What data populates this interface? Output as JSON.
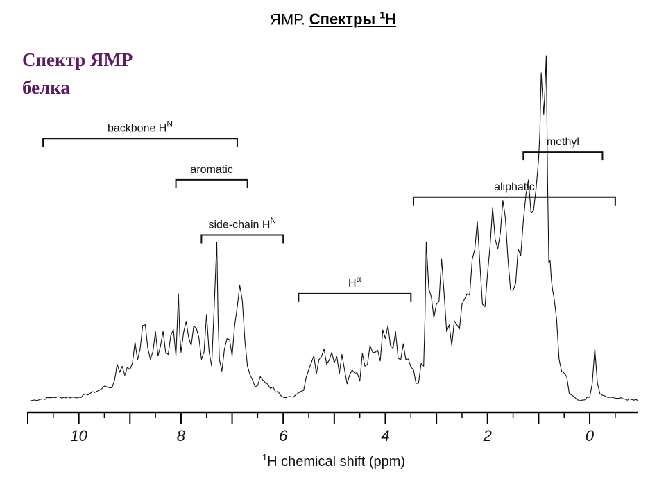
{
  "header": {
    "title_prefix": "ЯМР.",
    "title_main": "Спектры",
    "title_sup": "1",
    "title_suffix": "H"
  },
  "sidebar": {
    "line1": "Спектр ЯМР",
    "line2": "белка"
  },
  "chart_data": {
    "type": "line",
    "title": "",
    "xlabel_sup": "1",
    "xlabel": "H chemical shift (ppm)",
    "ylabel": "",
    "xlim": [
      11,
      -0.95
    ],
    "xticks": [
      10,
      8,
      6,
      4,
      2,
      0
    ],
    "x_reversed": true,
    "grid": false,
    "regions": [
      {
        "label": "backbone H",
        "label_sup": "N",
        "from": 10.7,
        "to": 6.9,
        "level": 0.76
      },
      {
        "label": "aromatic",
        "label_sup": "",
        "from": 8.1,
        "to": 6.7,
        "level": 0.64
      },
      {
        "label": "side-chain H",
        "label_sup": "N",
        "from": 7.6,
        "to": 6.0,
        "level": 0.48
      },
      {
        "label": "H",
        "label_sup": "α",
        "from": 5.7,
        "to": 3.5,
        "level": 0.31
      },
      {
        "label": "aliphatic",
        "label_sup": "",
        "from": 3.45,
        "to": -0.5,
        "level": 0.59
      },
      {
        "label": "methyl",
        "label_sup": "",
        "from": 1.3,
        "to": -0.25,
        "level": 0.72
      }
    ],
    "spectrum": [
      [
        10.95,
        0.0
      ],
      [
        10.5,
        0.01
      ],
      [
        10.0,
        0.01
      ],
      [
        9.6,
        0.03
      ],
      [
        9.45,
        0.04
      ],
      [
        9.3,
        0.06
      ],
      [
        9.15,
        0.1
      ],
      [
        9.0,
        0.09
      ],
      [
        8.9,
        0.17
      ],
      [
        8.8,
        0.15
      ],
      [
        8.7,
        0.22
      ],
      [
        8.6,
        0.12
      ],
      [
        8.5,
        0.2
      ],
      [
        8.4,
        0.16
      ],
      [
        8.3,
        0.14
      ],
      [
        8.2,
        0.19
      ],
      [
        8.1,
        0.13
      ],
      [
        8.05,
        0.31
      ],
      [
        8.0,
        0.14
      ],
      [
        7.9,
        0.23
      ],
      [
        7.8,
        0.16
      ],
      [
        7.7,
        0.21
      ],
      [
        7.6,
        0.12
      ],
      [
        7.5,
        0.25
      ],
      [
        7.4,
        0.1
      ],
      [
        7.3,
        0.46
      ],
      [
        7.25,
        0.12
      ],
      [
        7.1,
        0.18
      ],
      [
        7.0,
        0.13
      ],
      [
        6.9,
        0.27
      ],
      [
        6.8,
        0.29
      ],
      [
        6.7,
        0.1
      ],
      [
        6.55,
        0.04
      ],
      [
        6.4,
        0.06
      ],
      [
        6.2,
        0.04
      ],
      [
        6.0,
        0.01
      ],
      [
        5.8,
        0.01
      ],
      [
        5.6,
        0.03
      ],
      [
        5.4,
        0.13
      ],
      [
        5.2,
        0.15
      ],
      [
        5.0,
        0.11
      ],
      [
        4.8,
        0.09
      ],
      [
        4.6,
        0.08
      ],
      [
        4.4,
        0.1
      ],
      [
        4.2,
        0.14
      ],
      [
        4.0,
        0.18
      ],
      [
        3.9,
        0.16
      ],
      [
        3.8,
        0.2
      ],
      [
        3.6,
        0.12
      ],
      [
        3.4,
        0.05
      ],
      [
        3.25,
        0.1
      ],
      [
        3.2,
        0.46
      ],
      [
        3.1,
        0.3
      ],
      [
        3.0,
        0.28
      ],
      [
        2.9,
        0.41
      ],
      [
        2.8,
        0.2
      ],
      [
        2.7,
        0.16
      ],
      [
        2.6,
        0.22
      ],
      [
        2.5,
        0.28
      ],
      [
        2.4,
        0.31
      ],
      [
        2.3,
        0.41
      ],
      [
        2.2,
        0.52
      ],
      [
        2.1,
        0.28
      ],
      [
        2.0,
        0.37
      ],
      [
        1.9,
        0.56
      ],
      [
        1.8,
        0.44
      ],
      [
        1.7,
        0.58
      ],
      [
        1.6,
        0.41
      ],
      [
        1.5,
        0.32
      ],
      [
        1.4,
        0.44
      ],
      [
        1.3,
        0.52
      ],
      [
        1.2,
        0.64
      ],
      [
        1.1,
        0.55
      ],
      [
        1.0,
        0.7
      ],
      [
        0.95,
        0.95
      ],
      [
        0.9,
        0.83
      ],
      [
        0.85,
        1.0
      ],
      [
        0.8,
        0.4
      ],
      [
        0.75,
        0.35
      ],
      [
        0.7,
        0.3
      ],
      [
        0.6,
        0.12
      ],
      [
        0.5,
        0.08
      ],
      [
        0.4,
        0.02
      ],
      [
        0.2,
        0.0
      ],
      [
        0.0,
        0.01
      ],
      [
        -0.1,
        0.15
      ],
      [
        -0.2,
        0.02
      ],
      [
        -0.4,
        0.01
      ],
      [
        -0.95,
        0.0
      ]
    ]
  }
}
